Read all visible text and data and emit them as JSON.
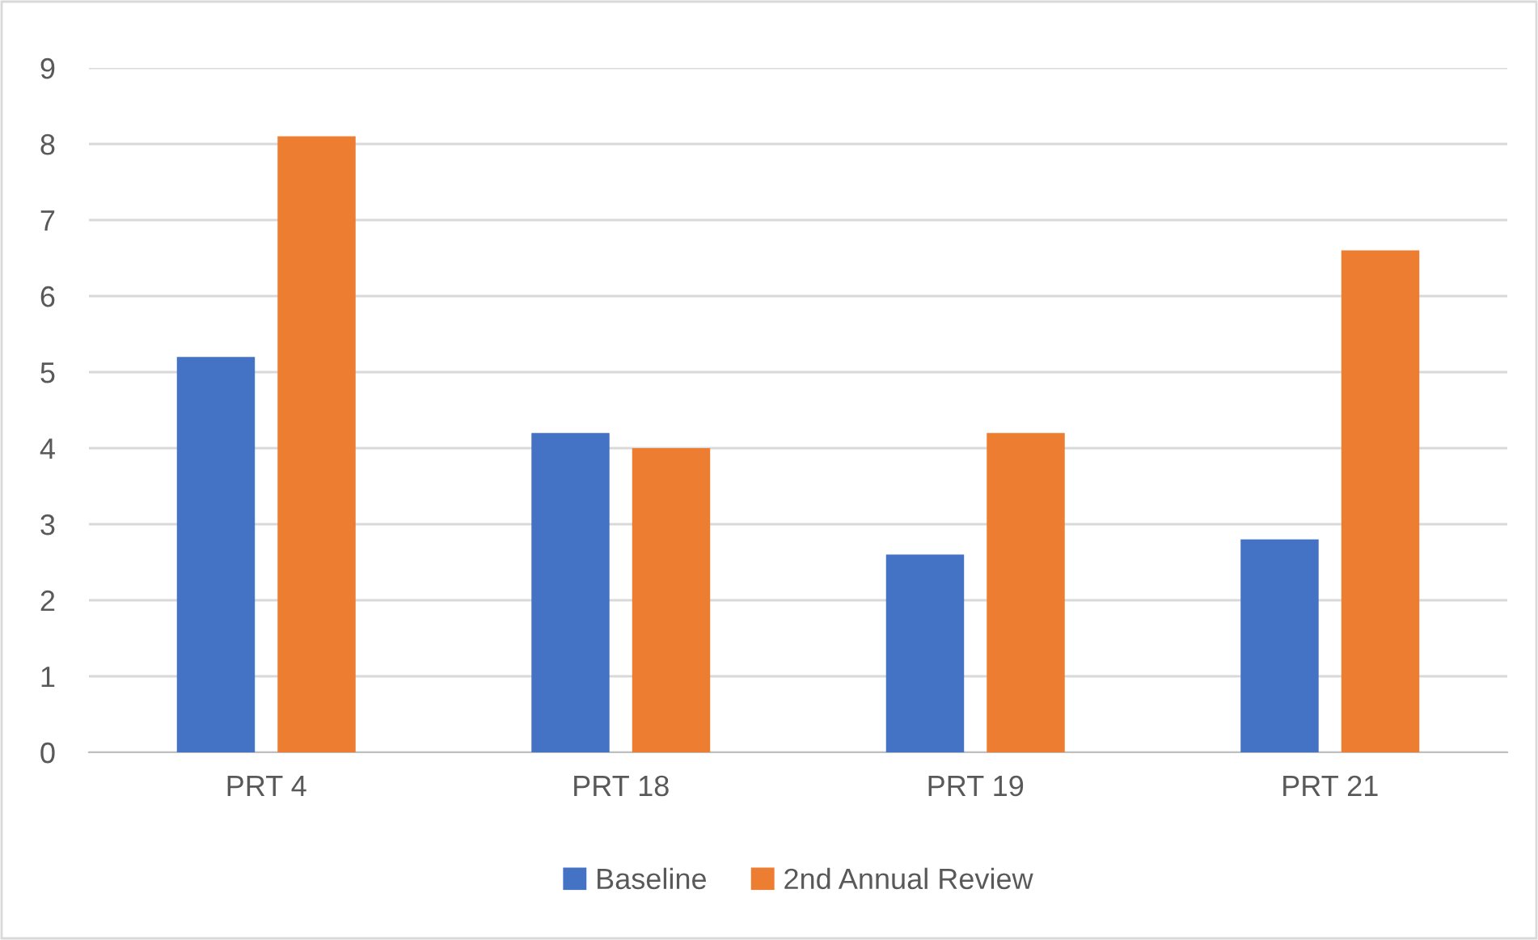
{
  "chart_data": {
    "type": "bar",
    "categories": [
      "PRT 4",
      "PRT 18",
      "PRT 19",
      "PRT 21"
    ],
    "series": [
      {
        "name": "Baseline",
        "color": "#4472c4",
        "values": [
          5.2,
          4.2,
          2.6,
          2.8
        ]
      },
      {
        "name": "2nd Annual Review",
        "color": "#ed7d31",
        "values": [
          8.1,
          4.0,
          4.2,
          6.6
        ]
      }
    ],
    "ylim": [
      0,
      9
    ],
    "yticks": [
      0,
      1,
      2,
      3,
      4,
      5,
      6,
      7,
      8,
      9
    ],
    "grid": "y",
    "legend": "bottom"
  }
}
